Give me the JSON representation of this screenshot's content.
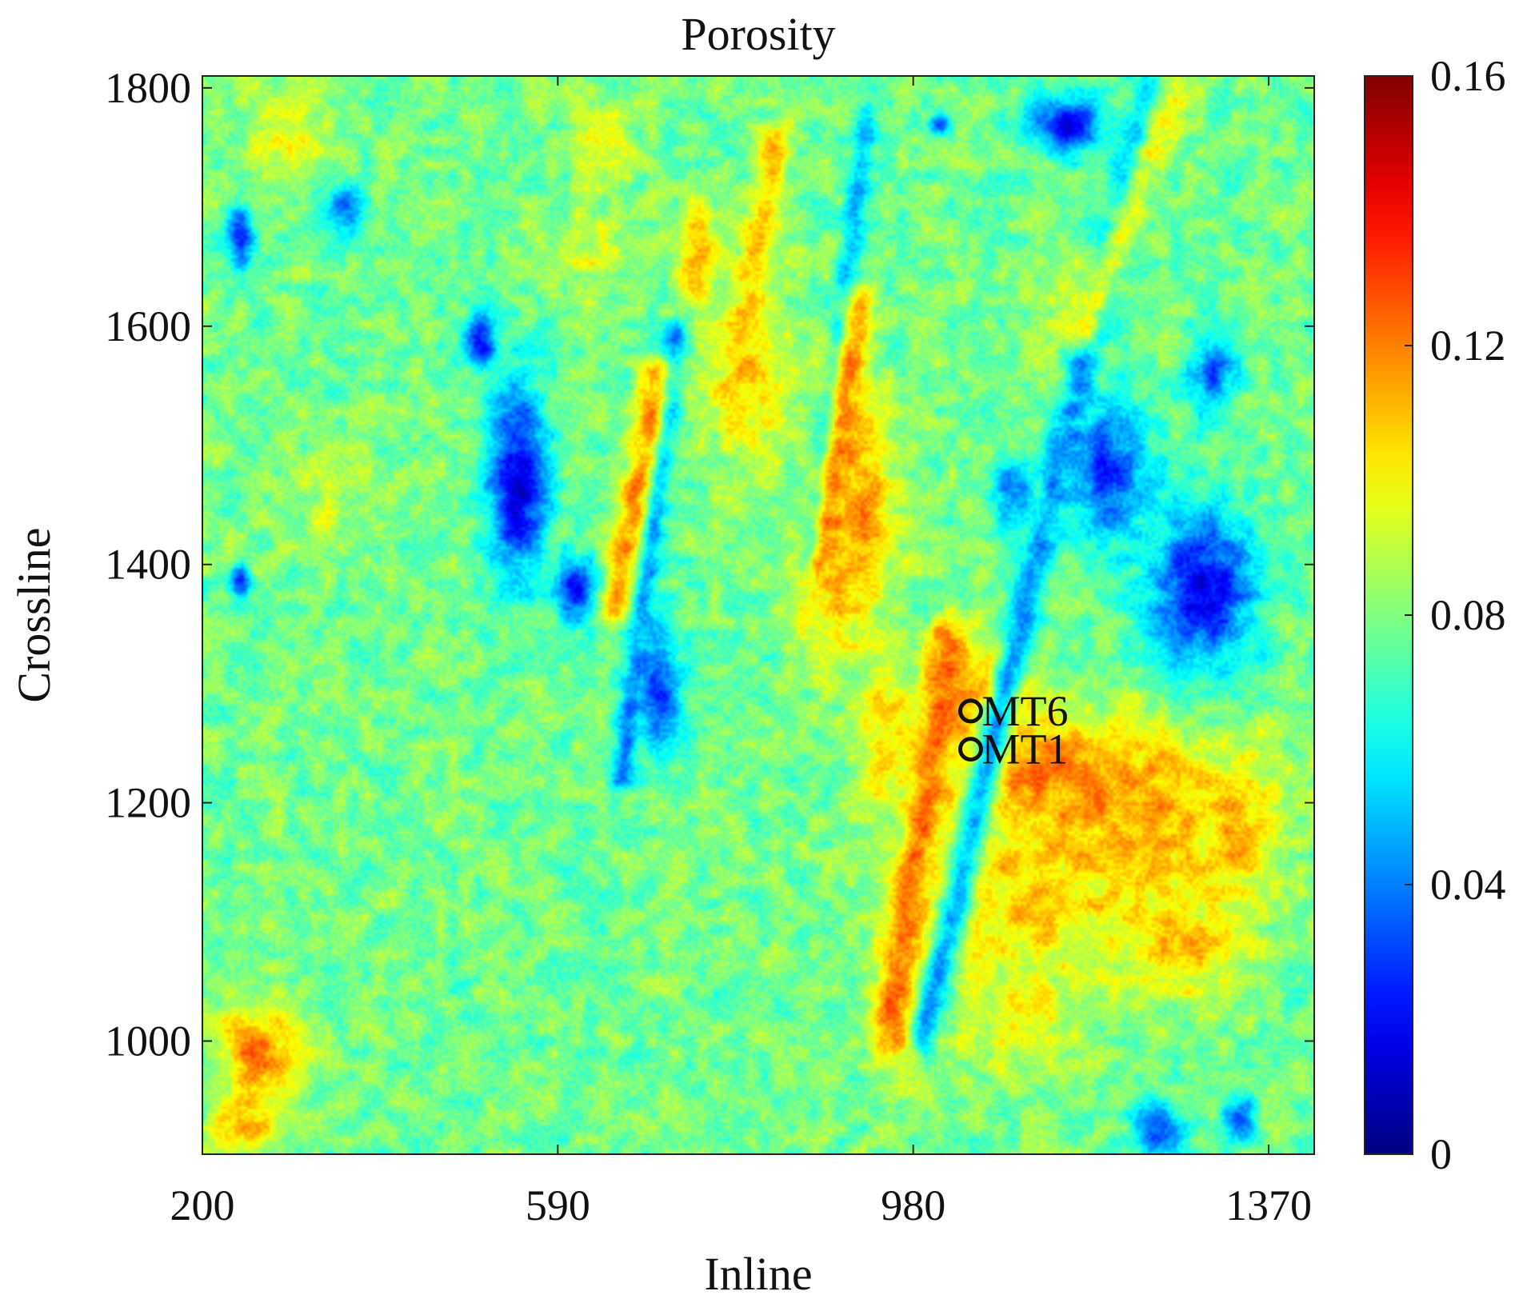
{
  "chart_data": {
    "type": "heatmap",
    "title": "Porosity",
    "xlabel": "Inline",
    "ylabel": "Crossline",
    "xlim": [
      200,
      1420
    ],
    "ylim": [
      905,
      1810
    ],
    "x_ticks": [
      200,
      590,
      980,
      1370
    ],
    "y_ticks": [
      1000,
      1200,
      1400,
      1600,
      1800
    ],
    "colorbar": {
      "colormap": "jet",
      "range": [
        0,
        0.16
      ],
      "ticks": [
        0,
        0.04,
        0.08,
        0.12,
        0.16
      ],
      "tick_labels": [
        "0",
        "0.04",
        "0.08",
        "0.12",
        "0.16"
      ]
    },
    "background_value": 0.078,
    "regions": [
      {
        "kind": "high",
        "x": 1135,
        "y": 1220,
        "rx": 130,
        "ry": 55,
        "value": 0.125
      },
      {
        "kind": "high",
        "x": 1060,
        "y": 1290,
        "rx": 55,
        "ry": 55,
        "value": 0.122
      },
      {
        "kind": "high",
        "x": 1220,
        "y": 1190,
        "rx": 130,
        "ry": 70,
        "value": 0.118
      },
      {
        "kind": "high",
        "x": 1110,
        "y": 1120,
        "rx": 150,
        "ry": 75,
        "value": 0.11
      },
      {
        "kind": "high",
        "x": 1270,
        "y": 1080,
        "rx": 80,
        "ry": 50,
        "value": 0.112
      },
      {
        "kind": "high",
        "x": 1340,
        "y": 1180,
        "rx": 55,
        "ry": 70,
        "value": 0.112
      },
      {
        "kind": "high",
        "x": 1090,
        "y": 1020,
        "rx": 90,
        "ry": 55,
        "value": 0.1
      },
      {
        "kind": "high",
        "x": 920,
        "y": 1450,
        "rx": 50,
        "ry": 110,
        "value": 0.115
      },
      {
        "kind": "high",
        "x": 885,
        "y": 1380,
        "rx": 45,
        "ry": 80,
        "value": 0.108
      },
      {
        "kind": "high",
        "x": 950,
        "y": 1260,
        "rx": 35,
        "ry": 60,
        "value": 0.11
      },
      {
        "kind": "high",
        "x": 800,
        "y": 1560,
        "rx": 50,
        "ry": 100,
        "value": 0.105
      },
      {
        "kind": "high",
        "x": 740,
        "y": 1660,
        "rx": 30,
        "ry": 50,
        "value": 0.11
      },
      {
        "kind": "high",
        "x": 640,
        "y": 1760,
        "rx": 40,
        "ry": 40,
        "value": 0.1
      },
      {
        "kind": "high",
        "x": 620,
        "y": 1660,
        "rx": 40,
        "ry": 50,
        "value": 0.095
      },
      {
        "kind": "high",
        "x": 260,
        "y": 990,
        "rx": 55,
        "ry": 50,
        "value": 0.12
      },
      {
        "kind": "high",
        "x": 245,
        "y": 930,
        "rx": 40,
        "ry": 30,
        "value": 0.11
      },
      {
        "kind": "high",
        "x": 290,
        "y": 1760,
        "rx": 55,
        "ry": 45,
        "value": 0.1
      },
      {
        "kind": "high",
        "x": 340,
        "y": 1450,
        "rx": 60,
        "ry": 50,
        "value": 0.09
      },
      {
        "kind": "high",
        "x": 1150,
        "y": 1600,
        "rx": 40,
        "ry": 90,
        "value": 0.09
      },
      {
        "kind": "high",
        "x": 970,
        "y": 1050,
        "rx": 30,
        "ry": 80,
        "value": 0.105
      },
      {
        "kind": "low",
        "x": 545,
        "y": 1470,
        "rx": 38,
        "ry": 95,
        "value": 0.012
      },
      {
        "kind": "low",
        "x": 505,
        "y": 1590,
        "rx": 20,
        "ry": 30,
        "value": 0.02
      },
      {
        "kind": "low",
        "x": 610,
        "y": 1380,
        "rx": 28,
        "ry": 30,
        "value": 0.02
      },
      {
        "kind": "low",
        "x": 700,
        "y": 1300,
        "rx": 30,
        "ry": 65,
        "value": 0.025
      },
      {
        "kind": "low",
        "x": 1300,
        "y": 1380,
        "rx": 65,
        "ry": 75,
        "value": 0.015
      },
      {
        "kind": "low",
        "x": 1195,
        "y": 1480,
        "rx": 50,
        "ry": 70,
        "value": 0.025
      },
      {
        "kind": "low",
        "x": 1310,
        "y": 1560,
        "rx": 30,
        "ry": 40,
        "value": 0.035
      },
      {
        "kind": "low",
        "x": 1150,
        "y": 1770,
        "rx": 45,
        "ry": 25,
        "value": 0.01
      },
      {
        "kind": "low",
        "x": 1010,
        "y": 1770,
        "rx": 14,
        "ry": 10,
        "value": 0.02
      },
      {
        "kind": "low",
        "x": 240,
        "y": 1675,
        "rx": 18,
        "ry": 30,
        "value": 0.02
      },
      {
        "kind": "low",
        "x": 240,
        "y": 1385,
        "rx": 12,
        "ry": 16,
        "value": 0.02
      },
      {
        "kind": "low",
        "x": 355,
        "y": 1700,
        "rx": 25,
        "ry": 25,
        "value": 0.035
      },
      {
        "kind": "low",
        "x": 1250,
        "y": 925,
        "rx": 30,
        "ry": 25,
        "value": 0.025
      },
      {
        "kind": "low",
        "x": 1340,
        "y": 935,
        "rx": 20,
        "ry": 25,
        "value": 0.035
      },
      {
        "kind": "low",
        "x": 1090,
        "y": 1460,
        "rx": 25,
        "ry": 30,
        "value": 0.035
      }
    ],
    "streaks": [
      {
        "kind": "low",
        "x0": 990,
        "y0": 1000,
        "x1": 1240,
        "y1": 1800,
        "w": 13,
        "value": 0.042
      },
      {
        "kind": "low",
        "x0": 660,
        "y0": 1220,
        "x1": 720,
        "y1": 1600,
        "w": 9,
        "value": 0.04
      },
      {
        "kind": "low",
        "x0": 870,
        "y0": 1400,
        "x1": 930,
        "y1": 1780,
        "w": 9,
        "value": 0.045
      },
      {
        "kind": "high",
        "x0": 955,
        "y0": 1000,
        "x1": 1020,
        "y1": 1340,
        "w": 15,
        "value": 0.125
      },
      {
        "kind": "high",
        "x0": 650,
        "y0": 1360,
        "x1": 700,
        "y1": 1560,
        "w": 12,
        "value": 0.12
      },
      {
        "kind": "high",
        "x0": 880,
        "y0": 1400,
        "x1": 920,
        "y1": 1620,
        "w": 12,
        "value": 0.12
      },
      {
        "kind": "high",
        "x0": 780,
        "y0": 1540,
        "x1": 830,
        "y1": 1760,
        "w": 12,
        "value": 0.11
      },
      {
        "kind": "high",
        "x0": 1170,
        "y0": 1600,
        "x1": 1270,
        "y1": 1800,
        "w": 14,
        "value": 0.1
      }
    ],
    "annotations": [
      {
        "label": "MT6",
        "x": 1043,
        "y": 1277
      },
      {
        "label": "MT1",
        "x": 1043,
        "y": 1245
      }
    ]
  }
}
